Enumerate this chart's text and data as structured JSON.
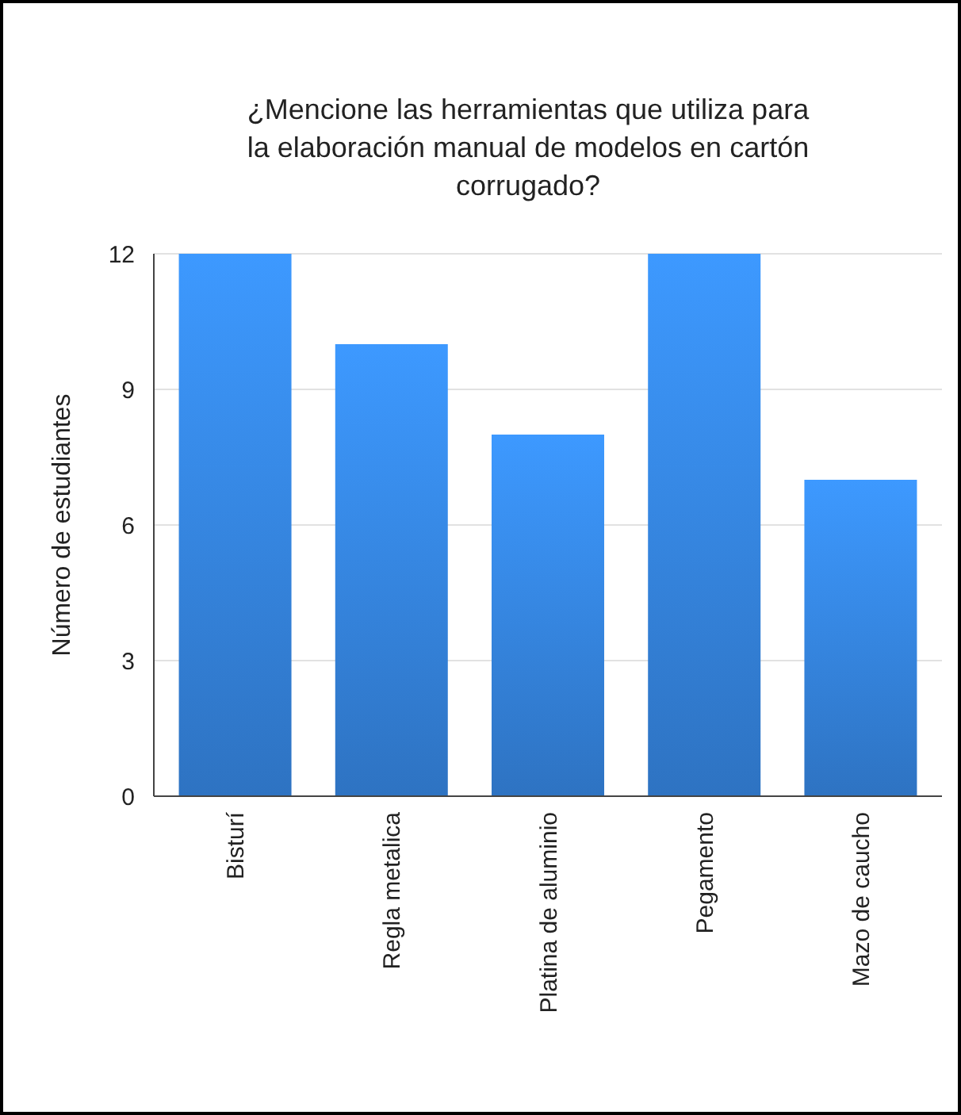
{
  "chart_data": {
    "type": "bar",
    "title": "¿Mencione las herramientas que utiliza para la elaboración manual de modelos en cartón corrugado?",
    "ylabel": "Número de estudiantes",
    "categories": [
      "Bisturí",
      "Regla metalica",
      "Platina de aluminio",
      "Pegamento",
      "Mazo de caucho"
    ],
    "values": [
      12,
      10,
      8,
      12,
      7
    ],
    "color": "#3585e0",
    "ylim": [
      0,
      12
    ],
    "yticks": [
      0,
      3,
      6,
      9,
      12
    ],
    "grid": "y"
  }
}
